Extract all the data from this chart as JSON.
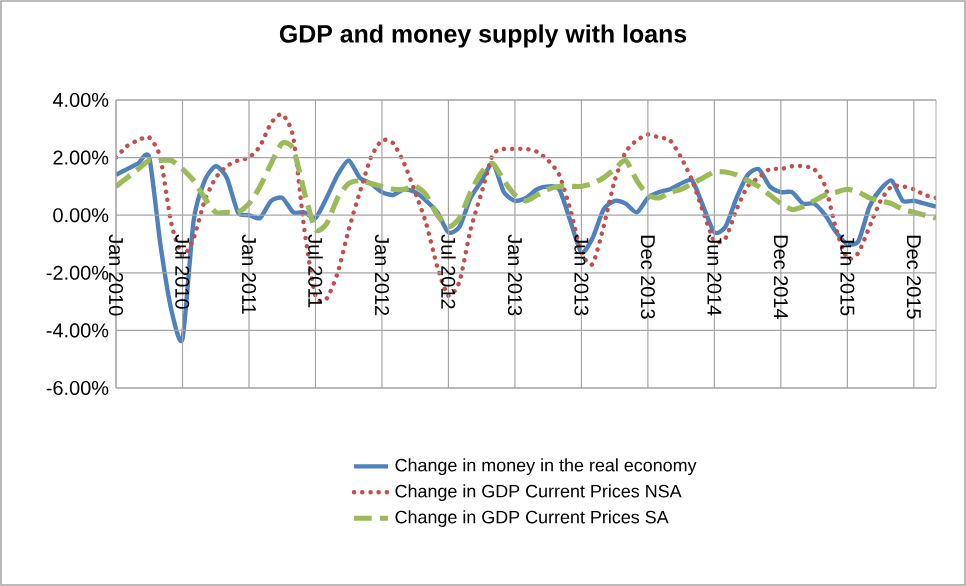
{
  "chart_data": {
    "type": "line",
    "title": "GDP and money supply with loans",
    "categories": [
      "Jan 2010",
      null,
      null,
      null,
      null,
      null,
      "Jul 2010",
      null,
      null,
      null,
      null,
      null,
      "Jan 2011",
      null,
      null,
      null,
      null,
      null,
      "Jul 2011",
      null,
      null,
      null,
      null,
      null,
      "Jan 2012",
      null,
      null,
      null,
      null,
      null,
      "Jul 2012",
      null,
      null,
      null,
      null,
      null,
      "Jan 2013",
      null,
      null,
      null,
      null,
      null,
      "Jun 2013",
      null,
      null,
      null,
      null,
      null,
      "Dec 2013",
      null,
      null,
      null,
      null,
      null,
      "Jun 2014",
      null,
      null,
      null,
      null,
      null,
      "Dec 2014",
      null,
      null,
      null,
      null,
      null,
      "Jun 2015",
      null,
      null,
      null,
      null,
      null,
      "Dec 2015",
      null,
      null
    ],
    "series": [
      {
        "name": "Change in money in the real economy",
        "color": "#4f81bd",
        "line_style": "solid",
        "values": [
          1.4,
          1.6,
          1.8,
          2.0,
          -1.0,
          -3.3,
          -4.3,
          -0.2,
          1.2,
          1.7,
          1.3,
          0.1,
          0.0,
          -0.1,
          0.5,
          0.6,
          0.1,
          0.1,
          -0.1,
          0.6,
          1.4,
          1.9,
          1.3,
          1.1,
          0.8,
          0.7,
          0.9,
          0.8,
          0.5,
          0.1,
          -0.6,
          -0.4,
          0.6,
          1.2,
          1.8,
          0.8,
          0.5,
          0.6,
          0.9,
          1.0,
          0.9,
          -0.2,
          -1.3,
          -0.8,
          0.2,
          0.5,
          0.4,
          0.1,
          0.6,
          0.8,
          0.9,
          1.1,
          1.2,
          0.3,
          -0.6,
          -0.4,
          0.6,
          1.4,
          1.6,
          1.0,
          0.8,
          0.8,
          0.4,
          0.4,
          0.0,
          -0.6,
          -1.0,
          -0.9,
          0.3,
          0.9,
          1.2,
          0.5,
          0.5,
          0.4,
          0.3
        ]
      },
      {
        "name": "Change in GDP Current Prices NSA",
        "color": "#c0504d",
        "line_style": "dotted",
        "values": [
          2.0,
          2.4,
          2.6,
          2.7,
          2.0,
          -0.3,
          -1.4,
          -0.8,
          0.5,
          1.3,
          1.7,
          1.9,
          2.0,
          2.4,
          3.2,
          3.5,
          2.7,
          -0.5,
          -2.8,
          -2.9,
          -2.0,
          -0.5,
          0.8,
          2.0,
          2.6,
          2.5,
          1.8,
          0.8,
          -0.3,
          -1.8,
          -2.8,
          -2.3,
          -0.5,
          0.8,
          2.1,
          2.3,
          2.3,
          2.3,
          2.2,
          1.9,
          1.4,
          0.2,
          -1.3,
          -1.7,
          -0.4,
          1.2,
          2.2,
          2.6,
          2.8,
          2.7,
          2.6,
          2.0,
          1.2,
          0.1,
          -0.9,
          -0.8,
          0.2,
          1.0,
          1.3,
          1.6,
          1.6,
          1.7,
          1.7,
          1.6,
          1.0,
          -0.5,
          -1.5,
          -1.3,
          -0.4,
          0.5,
          1.0,
          1.0,
          0.9,
          0.7,
          0.6
        ]
      },
      {
        "name": "Change in GDP Current Prices SA",
        "color": "#9bbb59",
        "line_style": "dashed",
        "values": [
          1.0,
          1.3,
          1.6,
          1.9,
          1.9,
          1.9,
          1.6,
          1.2,
          0.6,
          0.1,
          0.1,
          0.1,
          0.4,
          1.0,
          1.8,
          2.5,
          2.3,
          0.8,
          -0.5,
          -0.3,
          0.6,
          1.1,
          1.2,
          1.1,
          1.0,
          0.9,
          0.9,
          1.0,
          0.7,
          0.0,
          -0.4,
          -0.1,
          0.8,
          1.5,
          1.8,
          1.2,
          0.7,
          0.5,
          0.7,
          0.9,
          1.0,
          1.0,
          1.0,
          1.1,
          1.3,
          1.6,
          1.9,
          1.2,
          0.7,
          0.6,
          0.8,
          0.9,
          1.1,
          1.3,
          1.5,
          1.5,
          1.4,
          1.2,
          1.0,
          0.7,
          0.4,
          0.2,
          0.3,
          0.5,
          0.7,
          0.8,
          0.9,
          0.8,
          0.6,
          0.5,
          0.4,
          0.2,
          0.1,
          0.0,
          -0.1
        ]
      }
    ],
    "ylim": [
      -6,
      4
    ],
    "yticks": [
      {
        "value": -6,
        "label": "-6.00%"
      },
      {
        "value": -4,
        "label": "-4.00%"
      },
      {
        "value": -2,
        "label": "-2.00%"
      },
      {
        "value": 0,
        "label": "0.00%"
      },
      {
        "value": 2,
        "label": "2.00%"
      },
      {
        "value": 4,
        "label": "4.00%"
      }
    ],
    "grid": true,
    "legend": "bottom",
    "marker": "none"
  }
}
